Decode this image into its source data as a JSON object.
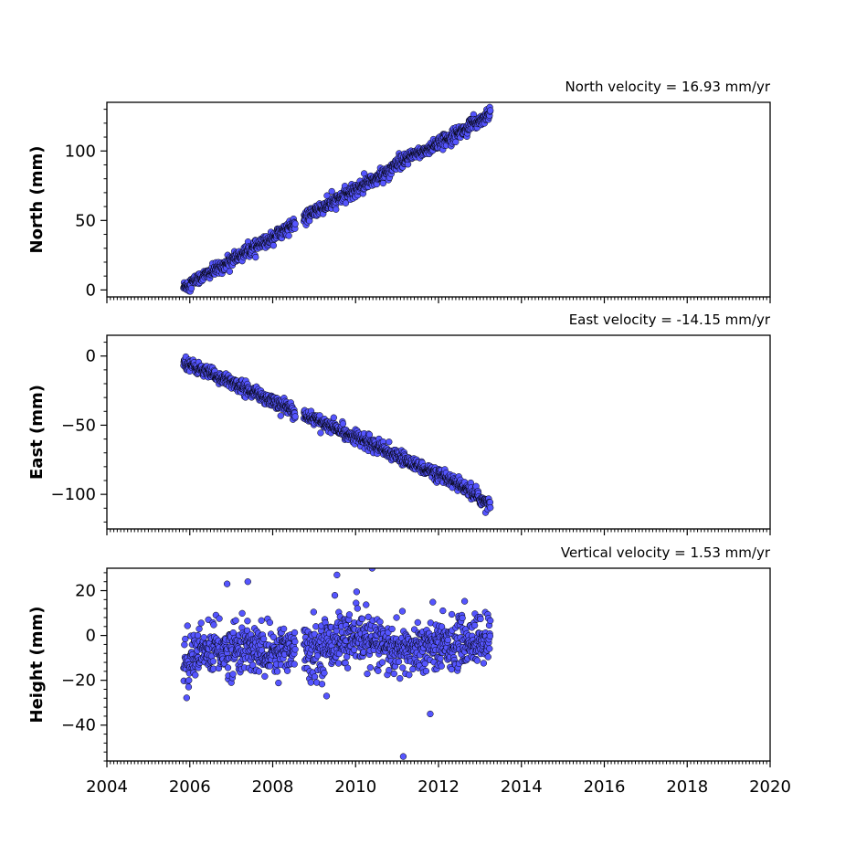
{
  "chart_data": [
    {
      "type": "scatter",
      "title": "North velocity = 16.93 mm/yr",
      "ylabel": "North (mm)",
      "xlim": [
        2004,
        2020
      ],
      "ylim": [
        -5,
        135
      ],
      "yticks": [
        0,
        50,
        100
      ],
      "ytick_labels": [
        "0",
        "50",
        "100"
      ],
      "series": [
        {
          "x": [
            2005.85,
            2006.2,
            2006.6,
            2007.0,
            2007.4,
            2007.8,
            2008.2,
            2008.6,
            2009.0,
            2009.4,
            2009.8,
            2010.2,
            2010.6,
            2011.0,
            2011.4,
            2011.8,
            2012.2,
            2012.6,
            2013.0,
            2013.25
          ],
          "y": [
            2,
            8,
            14,
            21,
            28,
            34,
            42,
            48,
            56,
            62,
            69,
            76,
            82,
            90,
            97,
            102,
            109,
            115,
            122,
            128
          ]
        }
      ]
    },
    {
      "type": "scatter",
      "title": "East velocity = -14.15 mm/yr",
      "ylabel": "East (mm)",
      "xlim": [
        2004,
        2020
      ],
      "ylim": [
        -125,
        15
      ],
      "yticks": [
        0,
        -50,
        -100
      ],
      "ytick_labels": [
        "0",
        "−50",
        "−100"
      ],
      "series": [
        {
          "x": [
            2005.85,
            2006.2,
            2006.6,
            2007.0,
            2007.4,
            2007.8,
            2008.2,
            2008.6,
            2009.0,
            2009.4,
            2009.8,
            2010.2,
            2010.6,
            2011.0,
            2011.4,
            2011.8,
            2012.2,
            2012.6,
            2013.0,
            2013.25
          ],
          "y": [
            -4,
            -9,
            -14,
            -19,
            -24,
            -30,
            -35,
            -41,
            -45,
            -51,
            -56,
            -61,
            -67,
            -72,
            -78,
            -83,
            -89,
            -95,
            -103,
            -108
          ]
        }
      ]
    },
    {
      "type": "scatter",
      "title": "Vertical velocity = 1.53 mm/yr",
      "ylabel": "Height (mm)",
      "xlim": [
        2004,
        2020
      ],
      "ylim": [
        -56,
        30
      ],
      "yticks": [
        20,
        0,
        -20,
        -40
      ],
      "ytick_labels": [
        "20",
        "0",
        "−20",
        "−40"
      ],
      "series": [
        {
          "x": [
            2005.85,
            2006.2,
            2006.6,
            2007.0,
            2007.4,
            2007.8,
            2008.2,
            2008.6,
            2009.0,
            2009.4,
            2009.8,
            2010.2,
            2010.6,
            2011.0,
            2011.4,
            2011.8,
            2012.2,
            2012.6,
            2013.0,
            2013.25
          ],
          "y": [
            -10,
            -8,
            -6,
            -7,
            -5,
            -8,
            -6,
            -4,
            -7,
            -3,
            -1,
            -2,
            -4,
            -8,
            -6,
            -5,
            -4,
            -3,
            -2,
            -2
          ]
        }
      ],
      "outliers": [
        {
          "x": 2011.15,
          "y": -54
        },
        {
          "x": 2011.8,
          "y": -35
        },
        {
          "x": 2009.3,
          "y": -27
        },
        {
          "x": 2010.4,
          "y": 30
        },
        {
          "x": 2009.55,
          "y": 27
        },
        {
          "x": 2007.4,
          "y": 24
        },
        {
          "x": 2006.9,
          "y": 23
        }
      ]
    }
  ],
  "xaxis": {
    "ticks": [
      2004,
      2006,
      2008,
      2010,
      2012,
      2014,
      2016,
      2018,
      2020
    ],
    "tick_labels": [
      "2004",
      "2006",
      "2008",
      "2010",
      "2012",
      "2014",
      "2016",
      "2018",
      "2020"
    ]
  },
  "colors": {
    "marker_fill": "#5555ff",
    "marker_edge": "#000000"
  }
}
